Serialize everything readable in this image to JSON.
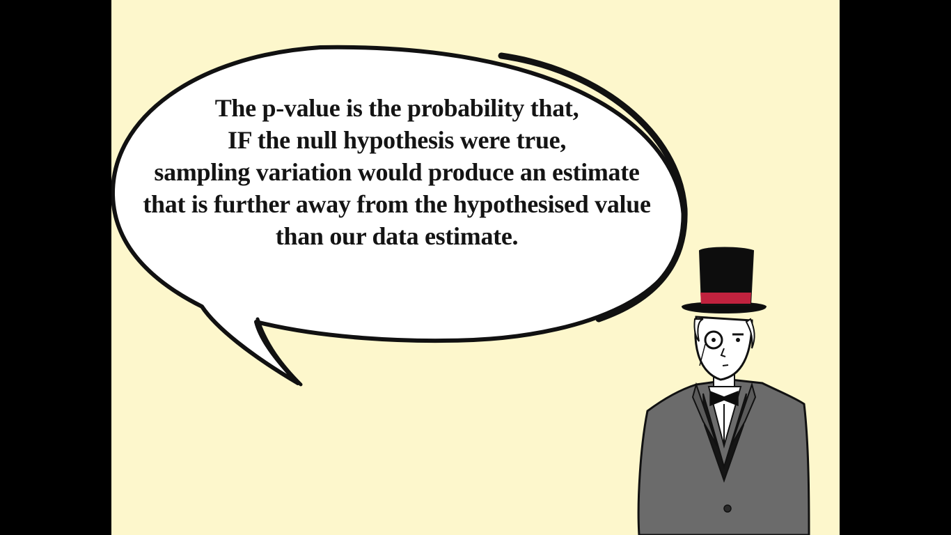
{
  "colors": {
    "background": "#fdf7cc",
    "letterbox": "#000000",
    "bubble_fill": "#ffffff",
    "outline": "#111111",
    "hat": "#0d0d0d",
    "hat_band": "#c0223e",
    "suit": "#6b6b6b",
    "vest": "#151515"
  },
  "speech_bubble": {
    "lines": [
      "The p-value is the probability that,",
      "IF the null hypothesis were true,",
      "sampling variation would produce an estimate",
      "that is further away from the hypothesised value",
      "than our data estimate."
    ]
  },
  "character": {
    "description_icon": "top-hat-gentleman-with-monocle"
  }
}
